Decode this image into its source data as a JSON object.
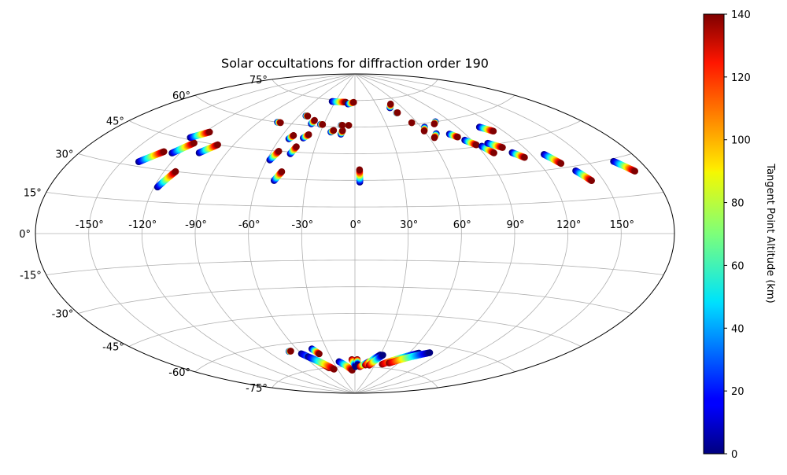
{
  "chart_data": {
    "type": "scatter",
    "projection": "aitoff",
    "title": "Solar occultations for diffraction order 190",
    "xlabel": "",
    "ylabel": "",
    "longitude_ticks": [
      "-150°",
      "-120°",
      "-90°",
      "-60°",
      "-30°",
      "0°",
      "30°",
      "60°",
      "90°",
      "120°",
      "150°"
    ],
    "longitude_tick_values": [
      -150,
      -120,
      -90,
      -60,
      -30,
      0,
      30,
      60,
      90,
      120,
      150
    ],
    "latitude_ticks": [
      "-75°",
      "-60°",
      "-45°",
      "-30°",
      "-15°",
      "0°",
      "15°",
      "30°",
      "45°",
      "60°",
      "75°"
    ],
    "latitude_tick_values": [
      -75,
      -60,
      -45,
      -30,
      -15,
      0,
      15,
      30,
      45,
      60,
      75
    ],
    "grid": true,
    "xlim": [
      -180,
      180
    ],
    "ylim": [
      -90,
      90
    ],
    "colorbar": {
      "label": "Tangent Point Altitude (km)",
      "range": [
        0,
        140
      ],
      "ticks": [
        "0",
        "20",
        "40",
        "60",
        "80",
        "100",
        "120",
        "140"
      ],
      "tick_values": [
        0,
        20,
        40,
        60,
        80,
        100,
        120,
        140
      ],
      "colormap": "jet"
    },
    "series_note": "",
    "tracks": [
      {
        "lon": [
          -140,
          -131
        ],
        "lat": [
          32,
          38
        ],
        "alt": [
          0,
          140
        ]
      },
      {
        "lon": [
          -125,
          -118
        ],
        "lat": [
          38,
          44
        ],
        "alt": [
          0,
          140
        ]
      },
      {
        "lon": [
          -125,
          -117
        ],
        "lat": [
          46,
          50
        ],
        "alt": [
          0,
          140
        ]
      },
      {
        "lon": [
          -118,
          -113
        ],
        "lat": [
          22,
          30
        ],
        "alt": [
          0,
          140
        ]
      },
      {
        "lon": [
          -108,
          -101
        ],
        "lat": [
          40,
          45
        ],
        "alt": [
          0,
          140
        ]
      },
      {
        "lon": [
          -74,
          -71
        ],
        "lat": [
          60,
          60
        ],
        "alt": [
          0,
          140
        ]
      },
      {
        "lon": [
          -58,
          -55
        ],
        "lat": [
          40,
          45
        ],
        "alt": [
          0,
          140
        ]
      },
      {
        "lon": [
          -50,
          -47
        ],
        "lat": [
          29,
          34
        ],
        "alt": [
          0,
          140
        ]
      },
      {
        "lon": [
          -53,
          -51
        ],
        "lat": [
          52,
          54
        ],
        "alt": [
          0,
          140
        ]
      },
      {
        "lon": [
          -46,
          -44
        ],
        "lat": [
          44,
          48
        ],
        "alt": [
          0,
          140
        ]
      },
      {
        "lon": [
          -42,
          -39
        ],
        "lat": [
          53,
          55
        ],
        "alt": [
          0,
          140
        ]
      },
      {
        "lon": [
          -53,
          -51
        ],
        "lat": [
          65,
          65
        ],
        "alt": [
          0,
          140
        ]
      },
      {
        "lon": [
          -42,
          -41
        ],
        "lat": [
          61,
          63
        ],
        "alt": [
          0,
          140
        ]
      },
      {
        "lon": [
          -33,
          -31
        ],
        "lat": [
          61,
          61
        ],
        "alt": [
          0,
          140
        ]
      },
      {
        "lon": [
          -21,
          -19
        ],
        "lat": [
          57,
          58
        ],
        "alt": [
          0,
          140
        ]
      },
      {
        "lon": [
          -12,
          -11
        ],
        "lat": [
          56,
          58
        ],
        "alt": [
          0,
          140
        ]
      },
      {
        "lon": [
          -13,
          -12
        ],
        "lat": [
          61,
          61
        ],
        "alt": [
          0,
          140
        ]
      },
      {
        "lon": [
          -6,
          -6
        ],
        "lat": [
          61,
          61
        ],
        "alt": [
          0,
          140
        ]
      },
      {
        "lon": [
          3,
          3
        ],
        "lat": [
          29,
          36
        ],
        "alt": [
          0,
          140
        ]
      },
      {
        "lon": [
          -35,
          -14
        ],
        "lat": [
          74,
          74
        ],
        "alt": [
          0,
          140
        ]
      },
      {
        "lon": [
          -10,
          -2
        ],
        "lat": [
          73,
          74
        ],
        "alt": [
          0,
          140
        ]
      },
      {
        "lon": [
          45,
          50
        ],
        "lat": [
          70,
          72
        ],
        "alt": [
          0,
          140
        ]
      },
      {
        "lon": [
          48,
          49
        ],
        "lat": [
          67,
          67
        ],
        "alt": [
          0,
          140
        ]
      },
      {
        "lon": [
          55,
          55
        ],
        "lat": [
          61,
          61
        ],
        "alt": [
          0,
          140
        ]
      },
      {
        "lon": [
          63,
          60
        ],
        "lat": [
          58,
          56
        ],
        "alt": [
          0,
          140
        ]
      },
      {
        "lon": [
          68,
          64
        ],
        "lat": [
          54,
          52
        ],
        "alt": [
          0,
          140
        ]
      },
      {
        "lon": [
          77,
          74
        ],
        "lat": [
          60,
          59
        ],
        "alt": [
          0,
          140
        ]
      },
      {
        "lon": [
          78,
          82
        ],
        "lat": [
          53,
          51
        ],
        "alt": [
          0,
          140
        ]
      },
      {
        "lon": [
          85,
          90
        ],
        "lat": [
          49,
          46
        ],
        "alt": [
          0,
          140
        ]
      },
      {
        "lon": [
          93,
          97
        ],
        "lat": [
          45,
          41
        ],
        "alt": [
          0,
          140
        ]
      },
      {
        "lon": [
          99,
          106
        ],
        "lat": [
          46,
          43
        ],
        "alt": [
          0,
          140
        ]
      },
      {
        "lon": [
          109,
          114
        ],
        "lat": [
          40,
          37
        ],
        "alt": [
          0,
          140
        ]
      },
      {
        "lon": [
          107,
          113
        ],
        "lat": [
          54,
          51
        ],
        "alt": [
          0,
          140
        ]
      },
      {
        "lon": [
          128,
          133
        ],
        "lat": [
          37,
          32
        ],
        "alt": [
          0,
          140
        ]
      },
      {
        "lon": [
          138,
          143
        ],
        "lat": [
          28,
          23
        ],
        "alt": [
          0,
          140
        ]
      },
      {
        "lon": [
          165,
          172
        ],
        "lat": [
          29,
          24
        ],
        "alt": [
          0,
          140
        ]
      },
      {
        "lon": [
          -70,
          -68
        ],
        "lat": [
          -64,
          -64
        ],
        "alt": [
          0,
          140
        ]
      },
      {
        "lon": [
          -60,
          -42
        ],
        "lat": [
          -66,
          -75
        ],
        "alt": [
          0,
          140
        ]
      },
      {
        "lon": [
          -56,
          -36
        ],
        "lat": [
          -68,
          -76
        ],
        "alt": [
          0,
          140
        ]
      },
      {
        "lon": [
          -45,
          -41
        ],
        "lat": [
          -64,
          -67
        ],
        "alt": [
          0,
          140
        ]
      },
      {
        "lon": [
          -22,
          -5
        ],
        "lat": [
          -72,
          -77
        ],
        "alt": [
          0,
          140
        ]
      },
      {
        "lon": [
          -4,
          1
        ],
        "lat": [
          -71,
          -75
        ],
        "alt": [
          140,
          0
        ]
      },
      {
        "lon": [
          3,
          4
        ],
        "lat": [
          -71,
          -74
        ],
        "alt": [
          140,
          0
        ]
      },
      {
        "lon": [
          8,
          20
        ],
        "lat": [
          -75,
          -72
        ],
        "alt": [
          140,
          0
        ]
      },
      {
        "lon": [
          16,
          30
        ],
        "lat": [
          -74,
          -68
        ],
        "alt": [
          140,
          0
        ]
      },
      {
        "lon": [
          22,
          33
        ],
        "lat": [
          -74,
          -68
        ],
        "alt": [
          140,
          0
        ]
      },
      {
        "lon": [
          40,
          70
        ],
        "lat": [
          -73,
          -65
        ],
        "alt": [
          140,
          0
        ]
      },
      {
        "lon": [
          48,
          80
        ],
        "lat": [
          -72,
          -64
        ],
        "alt": [
          140,
          0
        ]
      }
    ]
  }
}
